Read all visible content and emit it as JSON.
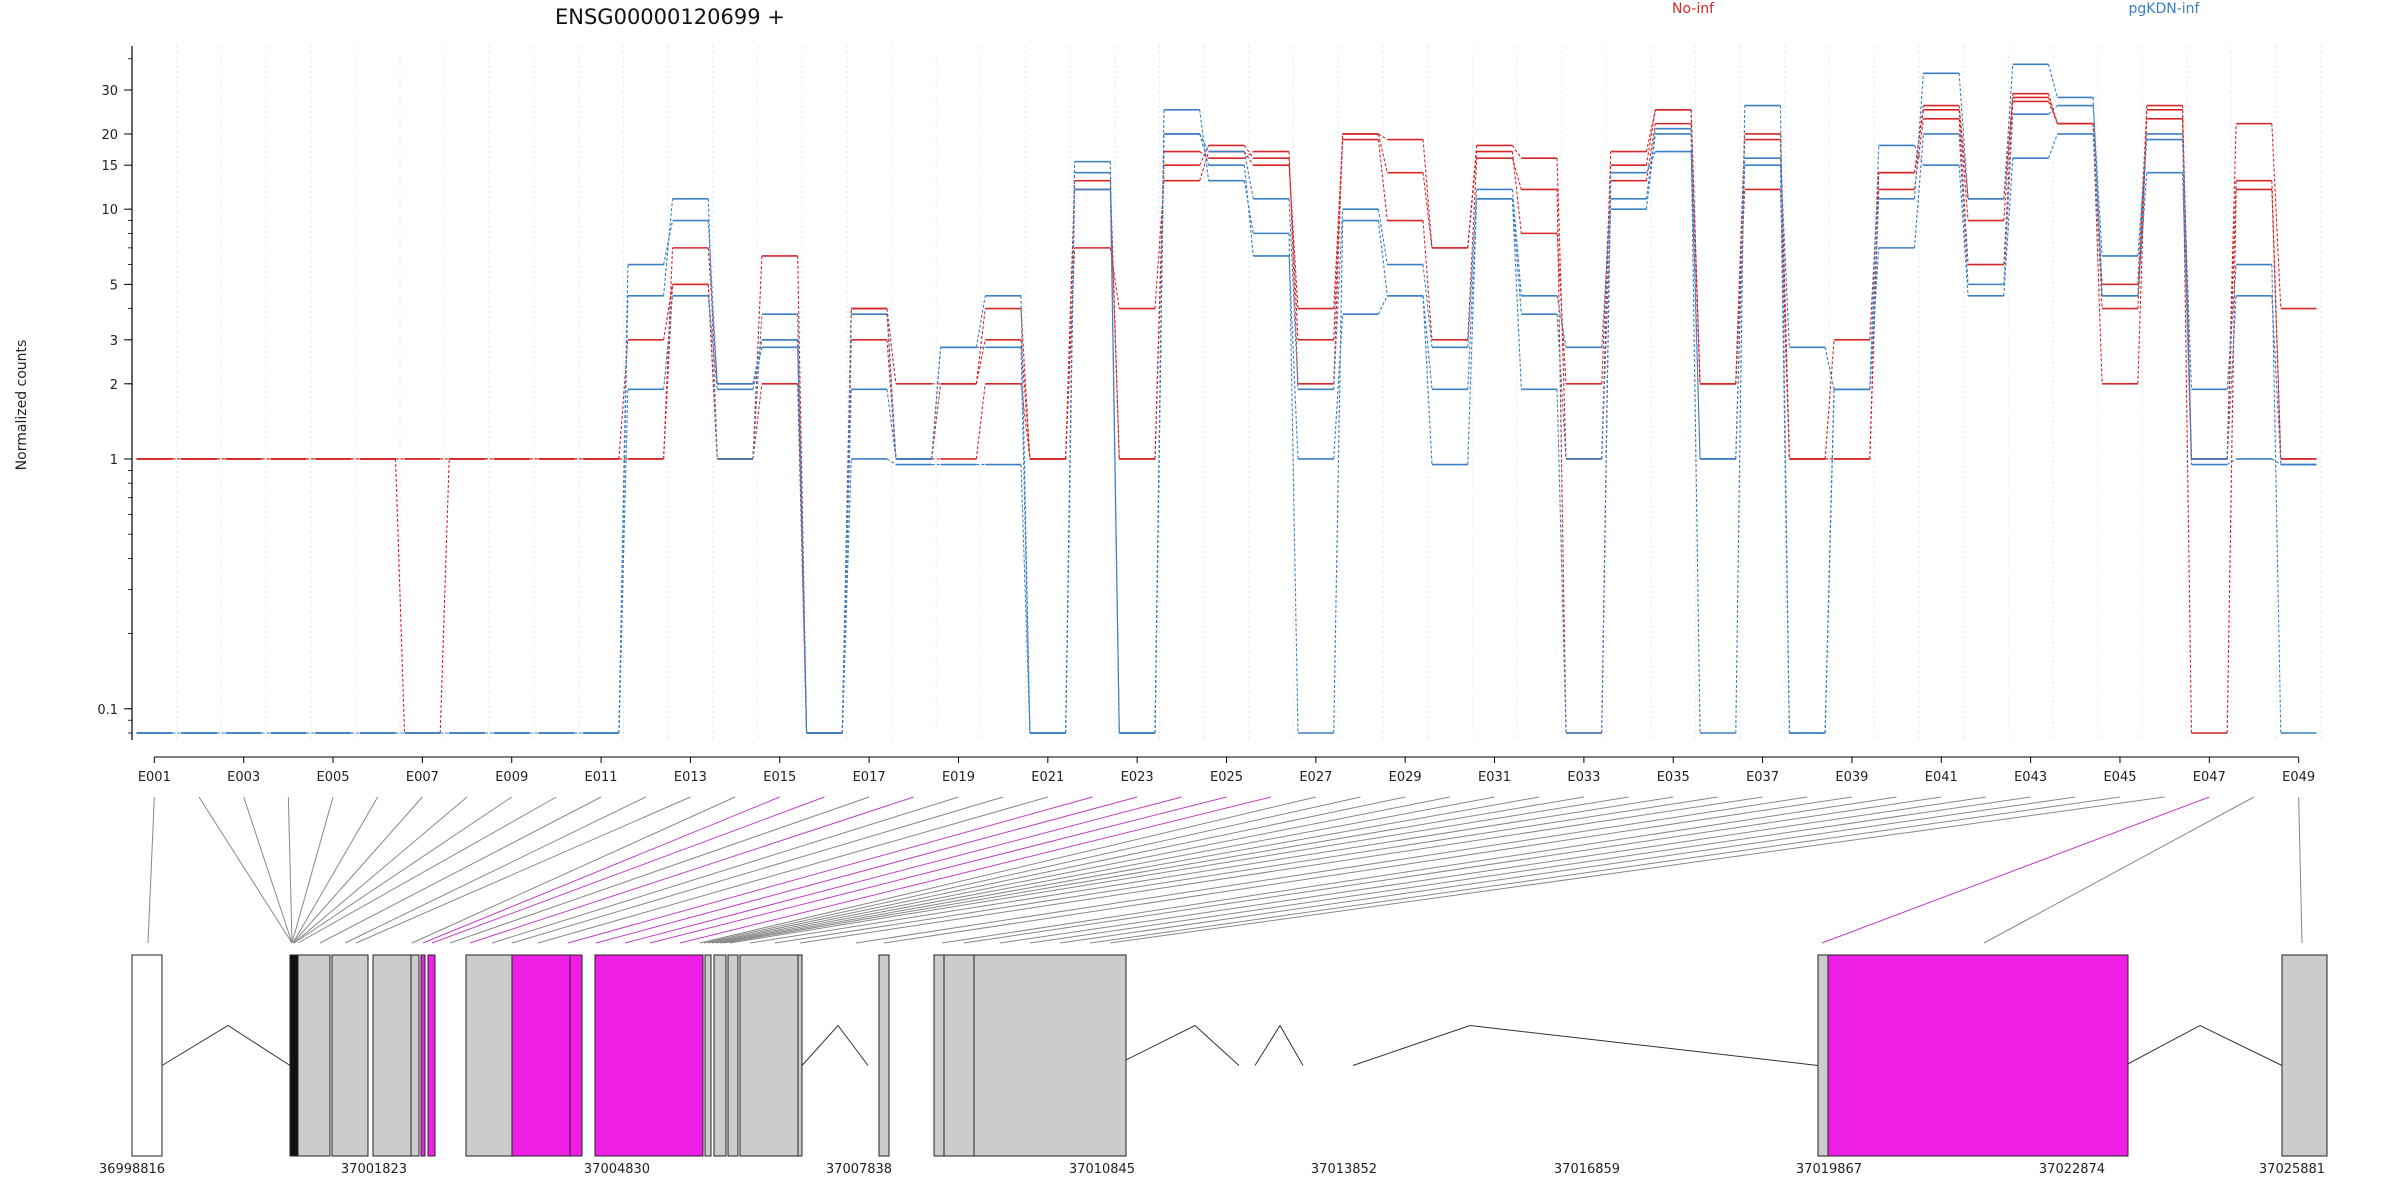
{
  "chart_data": {
    "type": "line",
    "title": "ENSG00000120699 +",
    "ylabel": "Normalized counts",
    "yscale": "log",
    "ylim": [
      0.075,
      45
    ],
    "yticks": [
      0.1,
      1,
      2,
      3,
      5,
      10,
      15,
      20,
      30
    ],
    "ytick_labels": [
      "0.1",
      "1",
      "2",
      "3",
      "5",
      "10",
      "15",
      "20",
      "30"
    ],
    "grid": true,
    "legend_position": "top",
    "x_tick_labels": [
      "E001",
      "E003",
      "E005",
      "E007",
      "E009",
      "E011",
      "E013",
      "E015",
      "E017",
      "E019",
      "E021",
      "E023",
      "E025",
      "E027",
      "E029",
      "E031",
      "E033",
      "E035",
      "E037",
      "E039",
      "E041",
      "E043",
      "E045",
      "E047",
      "E049"
    ],
    "exons": [
      "E001",
      "E002",
      "E003",
      "E004",
      "E005",
      "E006",
      "E007",
      "E008",
      "E009",
      "E010",
      "E011",
      "E012",
      "E013",
      "E014",
      "E015",
      "E016",
      "E017",
      "E018",
      "E019",
      "E020",
      "E021",
      "E022",
      "E023",
      "E024",
      "E025",
      "E026",
      "E027",
      "E028",
      "E029",
      "E030",
      "E031",
      "E032",
      "E033",
      "E034",
      "E035",
      "E036",
      "E037",
      "E038",
      "E039",
      "E040",
      "E041",
      "E042",
      "E043",
      "E044",
      "E045",
      "E046",
      "E047",
      "E048",
      "E049"
    ],
    "series": [
      {
        "name": "No-inf",
        "color": "#d62728",
        "values": [
          1,
          1,
          1,
          1,
          1,
          1,
          1,
          1,
          1,
          1,
          1,
          1,
          7,
          2,
          3,
          0.08,
          4,
          2,
          2,
          3,
          1,
          7,
          4,
          13,
          17,
          15,
          4,
          19,
          9,
          3,
          16,
          12,
          0.08,
          13,
          22,
          2,
          12,
          1,
          1,
          12,
          23,
          6,
          27,
          22,
          5,
          25,
          0.08,
          12,
          1
        ]
      },
      {
        "name": "No-inf",
        "color": "#d62728",
        "values": [
          1,
          1,
          1,
          1,
          1,
          1,
          1,
          1,
          1,
          1,
          1,
          1,
          5,
          1,
          2,
          0.08,
          3,
          1,
          1,
          2,
          1,
          13,
          1,
          15,
          18,
          16,
          3,
          20,
          14,
          7,
          17,
          8,
          2,
          15,
          25,
          2,
          19,
          1,
          1,
          14,
          25,
          9,
          29,
          22,
          4,
          23,
          1,
          13,
          1
        ]
      },
      {
        "name": "No-inf",
        "color": "#d62728",
        "values": [
          1,
          1,
          1,
          1,
          1,
          1,
          0.08,
          1,
          1,
          1,
          1,
          3,
          5,
          1,
          6.5,
          0.08,
          4,
          1,
          2,
          4,
          1,
          12,
          1,
          17,
          16,
          17,
          2,
          20,
          19,
          7,
          18,
          16,
          1,
          17,
          25,
          2,
          20,
          1,
          3,
          14,
          26,
          11,
          28,
          22,
          2,
          26,
          1,
          22,
          4
        ]
      },
      {
        "name": "pgKDN-inf",
        "color": "#3b7fc4",
        "values": [
          0.08,
          0.08,
          0.08,
          0.08,
          0.08,
          0.08,
          0.08,
          0.08,
          0.08,
          0.08,
          0.08,
          6,
          9,
          2,
          3,
          0.08,
          3.8,
          1,
          2.8,
          4.5,
          0.08,
          14,
          0.08,
          20,
          17,
          11,
          1.9,
          10,
          6,
          2.8,
          12,
          4.5,
          2.8,
          11,
          21,
          1,
          15,
          0.08,
          1.9,
          7,
          20,
          5,
          24,
          26,
          6.5,
          19,
          1.9,
          6,
          0.08
        ]
      },
      {
        "name": "pgKDN-inf",
        "color": "#3b7fc4",
        "values": [
          0.08,
          0.08,
          0.08,
          0.08,
          0.08,
          0.08,
          0.08,
          0.08,
          0.08,
          0.08,
          0.08,
          4.5,
          11,
          1,
          3.8,
          0.08,
          1.9,
          1,
          2.8,
          2.8,
          0.08,
          15.5,
          0.08,
          25,
          13,
          8,
          0.08,
          9,
          4.5,
          1.9,
          11,
          3.8,
          1,
          10,
          20,
          0.08,
          26,
          0.08,
          1.9,
          11,
          35,
          11,
          38,
          28,
          4.5,
          20,
          1,
          4.5,
          0.95
        ]
      },
      {
        "name": "pgKDN-inf",
        "color": "#3b7fc4",
        "values": [
          0.08,
          0.08,
          0.08,
          0.08,
          0.08,
          0.08,
          0.08,
          0.08,
          0.08,
          0.08,
          0.08,
          1.9,
          4.5,
          1.9,
          2.8,
          0.08,
          1,
          0.95,
          0.95,
          0.95,
          0.08,
          12,
          0.08,
          20,
          15,
          6.5,
          1,
          3.8,
          4.5,
          0.95,
          11,
          1.9,
          0.08,
          14,
          17,
          1,
          16,
          2.8,
          1.9,
          18,
          15,
          4.5,
          16,
          20,
          4.5,
          14,
          0.95,
          1,
          0.95
        ]
      }
    ],
    "gene_model": {
      "coordinate_labels": [
        "36998816",
        "37001823",
        "37004830",
        "37007838",
        "37010845",
        "37013852",
        "37016859",
        "37019867",
        "37022874",
        "37025881"
      ]
    },
    "colors": {
      "no_inf": "#d62728",
      "pgkdn_inf": "#3b7fc4",
      "highlight_exon": "#f01fe6",
      "exon": "#cccccc"
    }
  }
}
